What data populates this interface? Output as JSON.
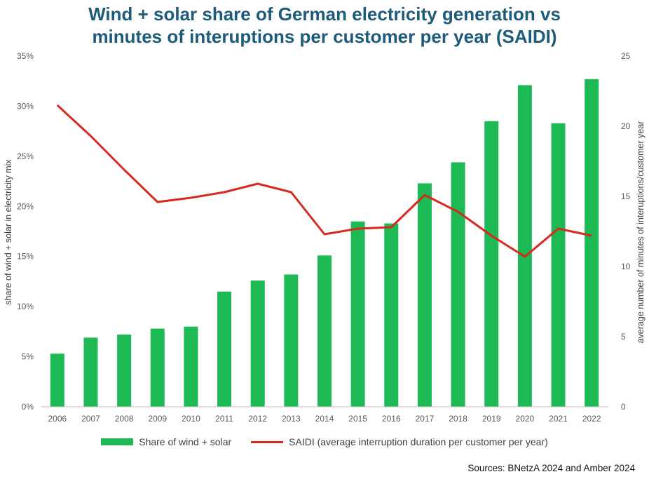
{
  "title_line1": "Wind + solar share of German electricity generation vs",
  "title_line2": "minutes of interuptions per customer per year (SAIDI)",
  "source": "Sources: BNetzA 2024 and Amber 2024",
  "colors": {
    "bar": "#1db954",
    "line": "#d42a20",
    "title": "#1d5b7a"
  },
  "chart_data": {
    "type": "bar",
    "categories": [
      "2006",
      "2007",
      "2008",
      "2009",
      "2010",
      "2011",
      "2012",
      "2013",
      "2014",
      "2015",
      "2016",
      "2017",
      "2018",
      "2019",
      "2020",
      "2021",
      "2022"
    ],
    "series": [
      {
        "name": "Share of wind + solar",
        "type": "bar",
        "axis": "left",
        "values": [
          5.3,
          6.9,
          7.2,
          7.8,
          8.0,
          11.5,
          12.6,
          13.2,
          15.1,
          18.5,
          18.3,
          22.3,
          24.4,
          28.5,
          32.1,
          28.3,
          32.7
        ]
      },
      {
        "name": "SAIDI (average interruption duration per customer per year)",
        "type": "line",
        "axis": "right",
        "values": [
          21.5,
          19.3,
          16.9,
          14.6,
          14.9,
          15.3,
          15.9,
          15.3,
          12.3,
          12.7,
          12.8,
          15.1,
          13.9,
          12.2,
          10.7,
          12.7,
          12.2
        ]
      }
    ],
    "ylabel": "share of wind + solar in electricity mix",
    "y2label": "average number of minutes of interuptions/customer year",
    "ylim": [
      0,
      35
    ],
    "y2lim": [
      0,
      25
    ],
    "yticks": [
      "0%",
      "5%",
      "10%",
      "15%",
      "20%",
      "25%",
      "30%",
      "35%"
    ],
    "y2ticks": [
      "0",
      "5",
      "10",
      "15",
      "20",
      "25"
    ],
    "grid": false,
    "legend_position": "bottom"
  }
}
